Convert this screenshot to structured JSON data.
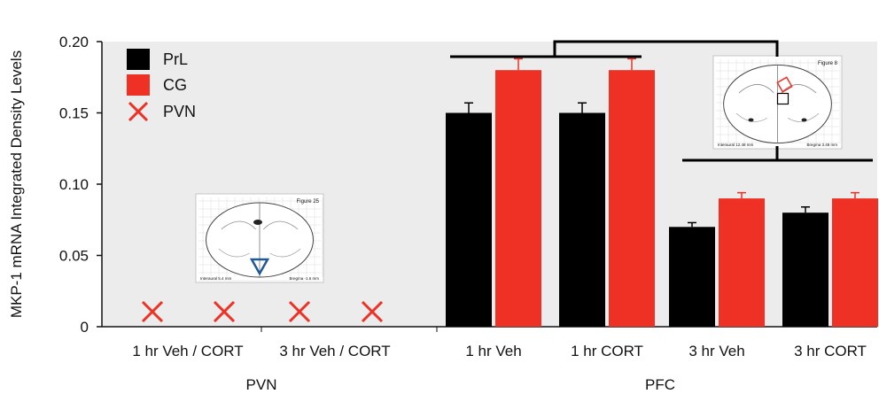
{
  "chart_data": {
    "type": "bar",
    "title": "",
    "ylabel": "MKP-1 mRNA Integrated Density Levels",
    "xlabel": "",
    "ylim": [
      0,
      0.2
    ],
    "yticks": [
      0,
      0.05,
      0.1,
      0.15,
      0.2
    ],
    "ytick_labels": [
      "0",
      "0.05",
      "0.10",
      "0.15",
      "0.20"
    ],
    "grid": false,
    "background": "#ececec",
    "legend": {
      "placement": "top-left",
      "entries": [
        {
          "label": "PrL",
          "marker": "square",
          "color": "#000000"
        },
        {
          "label": "CG",
          "marker": "square",
          "color": "#ee3124"
        },
        {
          "label": "PVN",
          "marker": "x",
          "color": "#ee3124"
        }
      ]
    },
    "groups": [
      {
        "label": "PVN",
        "categories": [
          "1 hr Veh / CORT",
          "3 hr Veh / CORT"
        ]
      },
      {
        "label": "PFC",
        "categories": [
          "1 hr Veh",
          "1 hr CORT",
          "3 hr Veh",
          "3 hr CORT"
        ]
      }
    ],
    "pvn_markers": {
      "name": "PVN",
      "color": "#ee3124",
      "values": [
        0,
        0,
        0,
        0
      ]
    },
    "series": [
      {
        "name": "PrL",
        "color": "#000000",
        "categories": [
          "1 hr Veh",
          "1 hr CORT",
          "3 hr Veh",
          "3 hr CORT"
        ],
        "values": [
          0.15,
          0.15,
          0.07,
          0.08
        ],
        "errors": [
          0.007,
          0.007,
          0.003,
          0.004
        ]
      },
      {
        "name": "CG",
        "color": "#ee3124",
        "categories": [
          "1 hr Veh",
          "1 hr CORT",
          "3 hr Veh",
          "3 hr CORT"
        ],
        "values": [
          0.18,
          0.18,
          0.09,
          0.09
        ],
        "errors": [
          0.008,
          0.008,
          0.004,
          0.004
        ]
      }
    ],
    "insets": [
      {
        "name": "pvn-brain-atlas",
        "figure_label": "Figure 25",
        "interaural": "Interaural 5.4 mm",
        "bregma": "Bregma -1.6 mm"
      },
      {
        "name": "pfc-brain-atlas",
        "figure_label": "Figure 8",
        "interaural": "Interaural 12.48 mm",
        "bregma": "Bregma 3.48 mm"
      }
    ]
  }
}
